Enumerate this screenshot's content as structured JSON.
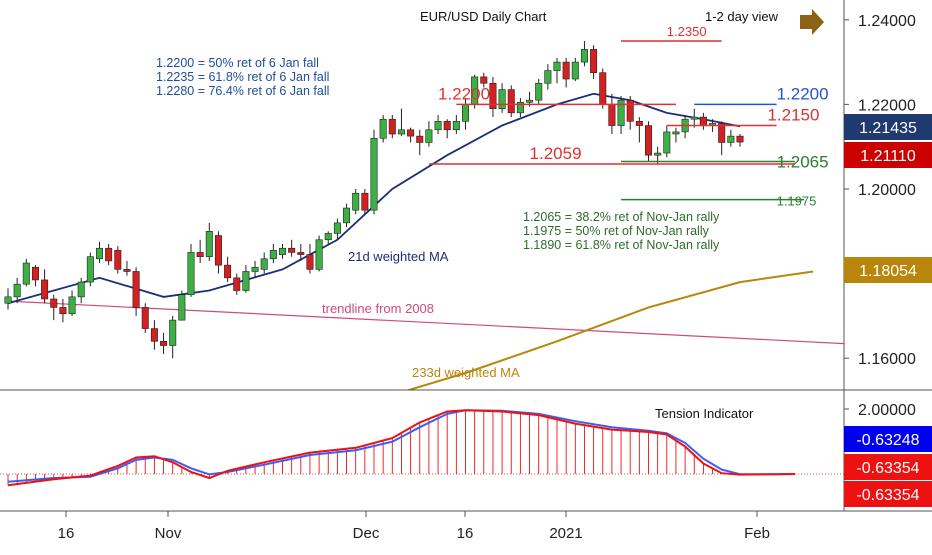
{
  "chart_data": {
    "type": "candlestick",
    "title": "EUR/USD Daily Chart",
    "view_label": "1-2 day view",
    "view_arrow_icon": "arrow-right-icon",
    "x_ticks": [
      "16",
      "Nov",
      "Dec",
      "16",
      "2021",
      "Feb"
    ],
    "price_axis": {
      "ylim": [
        1.15,
        1.25
      ],
      "ticks": [
        "1.24000",
        "1.22000",
        "1.20000",
        "1.16000"
      ]
    },
    "indicator_axis": {
      "ticks": [
        "2.00000"
      ]
    },
    "badges": [
      {
        "text": "1.21435",
        "color": "#1f3a6e"
      },
      {
        "text": "1.21110",
        "color": "#cc0000"
      },
      {
        "text": "1.18054",
        "color": "#b8860b"
      },
      {
        "text": "-0.63248",
        "color": "#0000ee"
      },
      {
        "text": "-0.63354",
        "color": "#ee1111"
      },
      {
        "text": "-0.63354",
        "color": "#ee1111"
      }
    ],
    "candles": [
      [
        1.173,
        1.1765,
        1.1715,
        1.1745
      ],
      [
        1.1745,
        1.179,
        1.173,
        1.1775
      ],
      [
        1.1775,
        1.1835,
        1.177,
        1.1825
      ],
      [
        1.1815,
        1.182,
        1.177,
        1.1785
      ],
      [
        1.1785,
        1.181,
        1.173,
        1.174
      ],
      [
        1.174,
        1.175,
        1.169,
        1.172
      ],
      [
        1.172,
        1.174,
        1.1685,
        1.1705
      ],
      [
        1.1705,
        1.176,
        1.17,
        1.1745
      ],
      [
        1.1745,
        1.179,
        1.173,
        1.178
      ],
      [
        1.178,
        1.185,
        1.177,
        1.184
      ],
      [
        1.1835,
        1.1875,
        1.1825,
        1.186
      ],
      [
        1.186,
        1.187,
        1.182,
        1.183
      ],
      [
        1.1855,
        1.1865,
        1.18,
        1.181
      ],
      [
        1.181,
        1.183,
        1.1795,
        1.1805
      ],
      [
        1.1805,
        1.1815,
        1.17,
        1.172
      ],
      [
        1.172,
        1.173,
        1.166,
        1.167
      ],
      [
        1.167,
        1.169,
        1.162,
        1.164
      ],
      [
        1.164,
        1.166,
        1.161,
        1.163
      ],
      [
        1.163,
        1.17,
        1.16,
        1.169
      ],
      [
        1.169,
        1.176,
        1.169,
        1.175
      ],
      [
        1.175,
        1.187,
        1.1745,
        1.185
      ],
      [
        1.185,
        1.188,
        1.1825,
        1.184
      ],
      [
        1.184,
        1.192,
        1.183,
        1.19
      ],
      [
        1.189,
        1.19,
        1.18,
        1.182
      ],
      [
        1.182,
        1.184,
        1.178,
        1.179
      ],
      [
        1.179,
        1.18,
        1.175,
        1.176
      ],
      [
        1.176,
        1.182,
        1.1755,
        1.1805
      ],
      [
        1.1805,
        1.183,
        1.179,
        1.1815
      ],
      [
        1.181,
        1.185,
        1.18,
        1.1835
      ],
      [
        1.1835,
        1.187,
        1.1825,
        1.1855
      ],
      [
        1.1845,
        1.187,
        1.1835,
        1.186
      ],
      [
        1.186,
        1.188,
        1.184,
        1.185
      ],
      [
        1.185,
        1.187,
        1.183,
        1.1845
      ],
      [
        1.1845,
        1.187,
        1.18,
        1.181
      ],
      [
        1.181,
        1.189,
        1.1805,
        1.188
      ],
      [
        1.188,
        1.19,
        1.187,
        1.1895
      ],
      [
        1.1895,
        1.193,
        1.188,
        1.192
      ],
      [
        1.192,
        1.1965,
        1.191,
        1.1955
      ],
      [
        1.195,
        1.2,
        1.194,
        1.199
      ],
      [
        1.199,
        1.2,
        1.194,
        1.195
      ],
      [
        1.195,
        1.214,
        1.194,
        1.212
      ],
      [
        1.212,
        1.2175,
        1.211,
        1.2165
      ],
      [
        1.2165,
        1.2175,
        1.212,
        1.213
      ],
      [
        1.213,
        1.219,
        1.2125,
        1.214
      ],
      [
        1.214,
        1.2145,
        1.211,
        1.2125
      ],
      [
        1.2125,
        1.214,
        1.208,
        1.211
      ],
      [
        1.211,
        1.216,
        1.21,
        1.214
      ],
      [
        1.214,
        1.2175,
        1.213,
        1.216
      ],
      [
        1.216,
        1.2165,
        1.212,
        1.214
      ],
      [
        1.214,
        1.2175,
        1.213,
        1.216
      ],
      [
        1.216,
        1.2215,
        1.214,
        1.22
      ],
      [
        1.22,
        1.227,
        1.219,
        1.2265
      ],
      [
        1.2265,
        1.2275,
        1.224,
        1.225
      ],
      [
        1.225,
        1.2265,
        1.217,
        1.219
      ],
      [
        1.219,
        1.225,
        1.218,
        1.2235
      ],
      [
        1.2235,
        1.2245,
        1.217,
        1.218
      ],
      [
        1.218,
        1.2215,
        1.217,
        1.2205
      ],
      [
        1.2205,
        1.223,
        1.2195,
        1.221
      ],
      [
        1.221,
        1.226,
        1.22,
        1.225
      ],
      [
        1.225,
        1.2295,
        1.2235,
        1.228
      ],
      [
        1.228,
        1.231,
        1.225,
        1.23
      ],
      [
        1.23,
        1.231,
        1.224,
        1.226
      ],
      [
        1.226,
        1.231,
        1.2255,
        1.23
      ],
      [
        1.23,
        1.235,
        1.229,
        1.233
      ],
      [
        1.233,
        1.234,
        1.226,
        1.2275
      ],
      [
        1.2275,
        1.2285,
        1.219,
        1.22
      ],
      [
        1.22,
        1.2225,
        1.213,
        1.215
      ],
      [
        1.215,
        1.222,
        1.213,
        1.221
      ],
      [
        1.221,
        1.222,
        1.214,
        1.216
      ],
      [
        1.216,
        1.217,
        1.211,
        1.215
      ],
      [
        1.215,
        1.216,
        1.2065,
        1.208
      ],
      [
        1.208,
        1.21,
        1.2059,
        1.2085
      ],
      [
        1.2085,
        1.215,
        1.2075,
        1.2135
      ],
      [
        1.213,
        1.2145,
        1.211,
        1.2135
      ],
      [
        1.2135,
        1.2175,
        1.212,
        1.2165
      ],
      [
        1.2165,
        1.219,
        1.2145,
        1.217
      ],
      [
        1.217,
        1.218,
        1.214,
        1.215
      ],
      [
        1.215,
        1.2165,
        1.2135,
        1.2155
      ],
      [
        1.2155,
        1.216,
        1.208,
        1.211
      ],
      [
        1.211,
        1.214,
        1.21,
        1.2125
      ],
      [
        1.2125,
        1.213,
        1.21,
        1.2111
      ]
    ],
    "moving_averages": [
      {
        "name": "21d weighted MA",
        "color": "#1a2f7a",
        "points": [
          [
            0,
            1.173
          ],
          [
            10,
            1.179
          ],
          [
            17,
            1.1745
          ],
          [
            22,
            1.176
          ],
          [
            30,
            1.181
          ],
          [
            36,
            1.188
          ],
          [
            42,
            1.2
          ],
          [
            48,
            1.208
          ],
          [
            54,
            1.215
          ],
          [
            60,
            1.22
          ],
          [
            64,
            1.2225
          ],
          [
            68,
            1.221
          ],
          [
            72,
            1.218
          ],
          [
            76,
            1.2165
          ],
          [
            80,
            1.2148
          ]
        ]
      },
      {
        "name": "233d weighted MA",
        "color": "#b8860b",
        "points": [
          [
            40,
            1.15
          ],
          [
            50,
            1.1565
          ],
          [
            60,
            1.164
          ],
          [
            70,
            1.172
          ],
          [
            80,
            1.178
          ],
          [
            88,
            1.1805
          ]
        ]
      }
    ],
    "trendline": {
      "name": "trendline from 2008",
      "color": "#d14a7e",
      "from": [
        0,
        1.1735
      ],
      "to": [
        100,
        1.1625
      ]
    },
    "levels": [
      {
        "value": "1.2350",
        "color": "#e03030",
        "start": 67,
        "end": 78,
        "label_at": 72
      },
      {
        "value": "1.2200",
        "color": "#e03030",
        "start": 49,
        "end": 73,
        "label_at": 47
      },
      {
        "value": "1.2200",
        "color": "#2456c8",
        "start": 75,
        "end": 84,
        "label_at": 84
      },
      {
        "value": "1.2150",
        "color": "#e03030",
        "start": 72,
        "end": 84,
        "label_at": 83
      },
      {
        "value": "1.2059",
        "color": "#e03030",
        "start": 46,
        "end": 86,
        "label_at": 57
      },
      {
        "value": "1.2065",
        "color": "#2e7d32",
        "start": 67,
        "end": 86,
        "label_at": 84
      },
      {
        "value": "1.1975",
        "color": "#2e7d32",
        "start": 67,
        "end": 87,
        "label_at": 84
      }
    ],
    "annotations": [
      {
        "lines": [
          "1.2200 = 50% ret of 6 Jan fall",
          "1.2235 = 61.8% ret of 6 Jan fall",
          "1.2280 = 76.4% ret of 6 Jan fall"
        ],
        "color": "#1f4e9c"
      },
      {
        "lines": [
          "1.2065 = 38.2% ret of Nov-Jan rally",
          "1.1975 = 50% ret of Nov-Jan rally",
          "1.1890 = 61.8% ret of Nov-Jan rally"
        ],
        "color": "#2e6b2e"
      }
    ],
    "indicator": {
      "name": "Tension Indicator",
      "ylim": [
        -1.2,
        2.3
      ],
      "zero_level": -0.63354,
      "red_line": [
        [
          0,
          -1.1
        ],
        [
          5,
          -0.85
        ],
        [
          9,
          -0.7
        ],
        [
          12,
          -0.3
        ],
        [
          14,
          0.05
        ],
        [
          16,
          0.1
        ],
        [
          18,
          -0.15
        ],
        [
          20,
          -0.55
        ],
        [
          22,
          -0.8
        ],
        [
          24,
          -0.5
        ],
        [
          28,
          -0.15
        ],
        [
          33,
          0.25
        ],
        [
          38,
          0.45
        ],
        [
          42,
          0.85
        ],
        [
          45,
          1.5
        ],
        [
          48,
          1.95
        ],
        [
          50,
          2.0
        ],
        [
          54,
          1.95
        ],
        [
          58,
          1.8
        ],
        [
          62,
          1.45
        ],
        [
          66,
          1.2
        ],
        [
          70,
          1.1
        ],
        [
          72,
          1.0
        ],
        [
          74,
          0.5
        ],
        [
          76,
          -0.2
        ],
        [
          78,
          -0.6
        ],
        [
          80,
          -0.66
        ],
        [
          84,
          -0.64
        ],
        [
          86,
          -0.63354
        ]
      ],
      "blue_line": [
        [
          0,
          -0.95
        ],
        [
          5,
          -0.8
        ],
        [
          9,
          -0.75
        ],
        [
          12,
          -0.4
        ],
        [
          14,
          -0.05
        ],
        [
          16,
          0.05
        ],
        [
          18,
          -0.05
        ],
        [
          20,
          -0.4
        ],
        [
          22,
          -0.65
        ],
        [
          24,
          -0.55
        ],
        [
          28,
          -0.25
        ],
        [
          33,
          0.15
        ],
        [
          38,
          0.35
        ],
        [
          42,
          0.7
        ],
        [
          45,
          1.3
        ],
        [
          48,
          1.85
        ],
        [
          50,
          2.0
        ],
        [
          54,
          1.98
        ],
        [
          58,
          1.85
        ],
        [
          62,
          1.55
        ],
        [
          66,
          1.3
        ],
        [
          70,
          1.15
        ],
        [
          72,
          1.05
        ],
        [
          74,
          0.65
        ],
        [
          76,
          0.0
        ],
        [
          78,
          -0.45
        ],
        [
          80,
          -0.64
        ],
        [
          84,
          -0.64
        ],
        [
          86,
          -0.63248
        ]
      ],
      "red_color": "#ee1111",
      "blue_color": "#3b5cf5"
    }
  }
}
